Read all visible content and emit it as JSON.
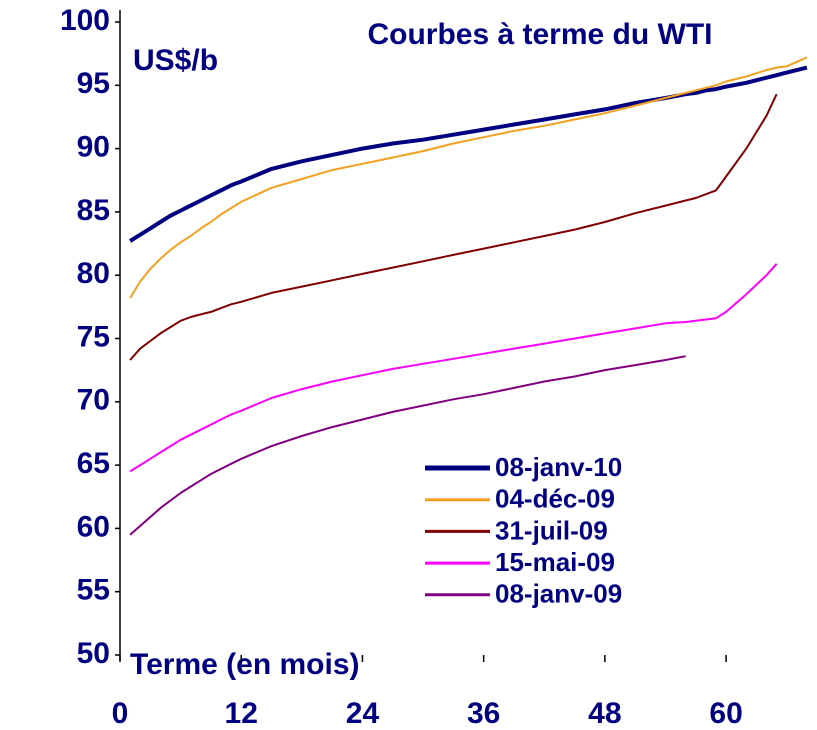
{
  "chart_data": {
    "type": "line",
    "title": "Courbes à terme du WTI",
    "y_label": "US$/b",
    "x_label": "Terme (en mois)",
    "x": [
      1,
      2,
      3,
      4,
      5,
      6,
      7,
      8,
      9,
      10,
      11,
      12,
      15,
      18,
      21,
      24,
      27,
      30,
      33,
      36,
      39,
      42,
      45,
      48,
      51,
      54,
      56,
      57,
      58,
      59,
      60,
      62,
      64,
      65,
      66,
      68
    ],
    "series": [
      {
        "name": "08-janv-10",
        "color": "#000080",
        "width": 4,
        "values": [
          82.7,
          83.2,
          83.7,
          84.2,
          84.7,
          85.1,
          85.5,
          85.9,
          86.3,
          86.7,
          87.1,
          87.4,
          88.4,
          89.0,
          89.5,
          90.0,
          90.4,
          90.7,
          91.1,
          91.5,
          91.9,
          92.3,
          92.7,
          93.1,
          93.6,
          94.0,
          94.3,
          94.4,
          94.6,
          94.7,
          94.9,
          95.2,
          95.6,
          95.8,
          96.0,
          96.4
        ]
      },
      {
        "name": "04-déc-09",
        "color": "#f4a020",
        "width": 2,
        "values": [
          78.2,
          79.5,
          80.5,
          81.3,
          82.0,
          82.6,
          83.1,
          83.7,
          84.2,
          84.8,
          85.3,
          85.8,
          86.9,
          87.6,
          88.3,
          88.8,
          89.3,
          89.8,
          90.4,
          90.9,
          91.4,
          91.8,
          92.3,
          92.8,
          93.4,
          94.0,
          94.4,
          94.6,
          94.8,
          95.0,
          95.3,
          95.7,
          96.2,
          96.4,
          96.5,
          97.2
        ]
      },
      {
        "name": "31-juil-09",
        "color": "#800000",
        "width": 2,
        "values": [
          73.3,
          74.2,
          74.8,
          75.4,
          75.9,
          76.4,
          76.7,
          76.9,
          77.1,
          77.4,
          77.7,
          77.9,
          78.6,
          79.1,
          79.6,
          80.1,
          80.6,
          81.1,
          81.6,
          82.1,
          82.6,
          83.1,
          83.6,
          84.2,
          84.9,
          85.5,
          85.9,
          86.1,
          86.4,
          86.7,
          87.8,
          90.0,
          92.6,
          94.3,
          null,
          null
        ]
      },
      {
        "name": "15-mai-09",
        "color": "#ff00ff",
        "width": 2,
        "values": [
          64.5,
          65.0,
          65.5,
          66.0,
          66.5,
          67.0,
          67.4,
          67.8,
          68.2,
          68.6,
          69.0,
          69.3,
          70.3,
          71.0,
          71.6,
          72.1,
          72.6,
          73.0,
          73.4,
          73.8,
          74.2,
          74.6,
          75.0,
          75.4,
          75.8,
          76.2,
          76.3,
          76.4,
          76.5,
          76.6,
          77.1,
          78.5,
          80.0,
          80.9,
          null,
          null
        ]
      },
      {
        "name": "08-janv-09",
        "color": "#800080",
        "width": 2,
        "values": [
          59.5,
          60.2,
          60.9,
          61.6,
          62.2,
          62.8,
          63.3,
          63.8,
          64.3,
          64.7,
          65.1,
          65.5,
          66.5,
          67.3,
          68.0,
          68.6,
          69.2,
          69.7,
          70.2,
          70.6,
          71.1,
          71.6,
          72.0,
          72.5,
          72.9,
          73.3,
          73.6,
          null,
          null,
          null,
          null,
          null,
          null,
          null,
          null,
          null
        ]
      }
    ],
    "xlim": [
      0,
      69
    ],
    "xticks": [
      0,
      12,
      24,
      36,
      48,
      60
    ],
    "ylim": [
      50,
      100
    ],
    "yticks": [
      50,
      55,
      60,
      65,
      70,
      75,
      80,
      85,
      90,
      95,
      100
    ],
    "grid": false,
    "legend": "lower right"
  }
}
